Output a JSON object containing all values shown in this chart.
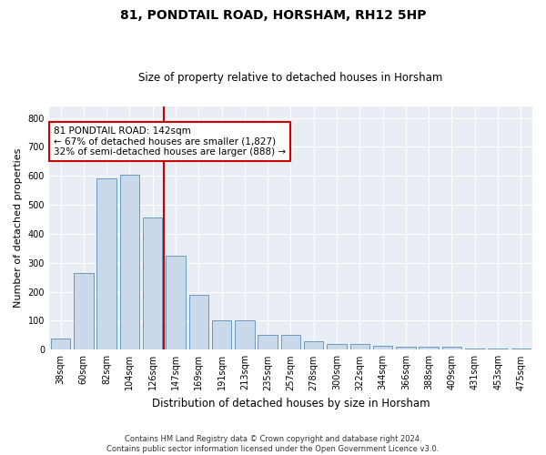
{
  "title": "81, PONDTAIL ROAD, HORSHAM, RH12 5HP",
  "subtitle": "Size of property relative to detached houses in Horsham",
  "xlabel": "Distribution of detached houses by size in Horsham",
  "ylabel": "Number of detached properties",
  "footer_line1": "Contains HM Land Registry data © Crown copyright and database right 2024.",
  "footer_line2": "Contains public sector information licensed under the Open Government Licence v3.0.",
  "annotation_line1": "81 PONDTAIL ROAD: 142sqm",
  "annotation_line2": "← 67% of detached houses are smaller (1,827)",
  "annotation_line3": "32% of semi-detached houses are larger (888) →",
  "bar_color": "#c9d9ea",
  "bar_edge_color": "#6a9abf",
  "vline_color": "#cc0000",
  "vline_x": 5,
  "categories": [
    "38sqm",
    "60sqm",
    "82sqm",
    "104sqm",
    "126sqm",
    "147sqm",
    "169sqm",
    "191sqm",
    "213sqm",
    "235sqm",
    "257sqm",
    "278sqm",
    "300sqm",
    "322sqm",
    "344sqm",
    "366sqm",
    "388sqm",
    "409sqm",
    "431sqm",
    "453sqm",
    "475sqm"
  ],
  "values": [
    40,
    265,
    590,
    605,
    455,
    325,
    190,
    100,
    100,
    50,
    50,
    30,
    20,
    20,
    15,
    10,
    10,
    10,
    5,
    3,
    3
  ],
  "ylim": [
    0,
    840
  ],
  "yticks": [
    0,
    100,
    200,
    300,
    400,
    500,
    600,
    700,
    800
  ],
  "background_color": "#ffffff",
  "plot_bg_color": "#e8eef4",
  "grid_color": "#ffffff",
  "title_fontsize": 10,
  "subtitle_fontsize": 8.5,
  "ylabel_fontsize": 8,
  "xlabel_fontsize": 8.5,
  "tick_fontsize": 7,
  "footer_fontsize": 6,
  "annotation_fontsize": 7.5
}
